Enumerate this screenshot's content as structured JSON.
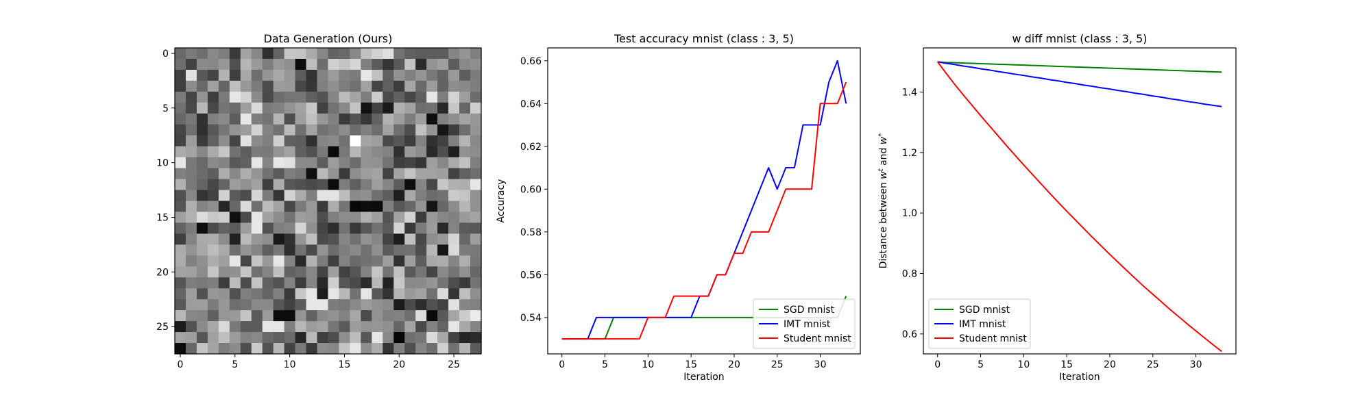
{
  "chart_data": [
    {
      "type": "heatmap",
      "title": "Data Generation (Ours)",
      "xlabel": "",
      "ylabel": "",
      "xticks": [
        0,
        5,
        10,
        15,
        20,
        25
      ],
      "yticks": [
        0,
        5,
        10,
        15,
        20,
        25
      ],
      "size": [
        28,
        28
      ],
      "value_range": [
        0,
        1
      ],
      "colormap": "gray",
      "seed": 1337,
      "highlights": [
        {
          "row": 8,
          "col": 16,
          "value": 1.0
        },
        {
          "row": 9,
          "col": 14,
          "value": 0.04
        },
        {
          "row": 11,
          "col": 12,
          "value": 0.06
        },
        {
          "row": 14,
          "col": 16,
          "value": 0.03
        },
        {
          "row": 14,
          "col": 17,
          "value": 0.05
        },
        {
          "row": 14,
          "col": 18,
          "value": 0.04
        },
        {
          "row": 24,
          "col": 9,
          "value": 0.05
        },
        {
          "row": 24,
          "col": 10,
          "value": 0.05
        },
        {
          "row": 24,
          "col": 23,
          "value": 0.04
        },
        {
          "row": 24,
          "col": 27,
          "value": 0.92
        },
        {
          "row": 26,
          "col": 20,
          "value": 0.02
        },
        {
          "row": 27,
          "col": 0,
          "value": 0.04
        }
      ]
    },
    {
      "type": "line",
      "title": "Test accuracy mnist (class : 3, 5)",
      "xlabel": "Iteration",
      "ylabel": "Accuracy",
      "xlim": [
        -1.65,
        34.65
      ],
      "ylim": [
        0.523,
        0.666
      ],
      "xticks": [
        0,
        5,
        10,
        15,
        20,
        25,
        30
      ],
      "yticks": [
        0.54,
        0.56,
        0.58,
        0.6,
        0.62,
        0.64,
        0.66
      ],
      "ytick_labels": [
        "0.54",
        "0.56",
        "0.58",
        "0.60",
        "0.62",
        "0.64",
        "0.66"
      ],
      "legend": "lower-right",
      "x": [
        0,
        1,
        2,
        3,
        4,
        5,
        6,
        7,
        8,
        9,
        10,
        11,
        12,
        13,
        14,
        15,
        16,
        17,
        18,
        19,
        20,
        21,
        22,
        23,
        24,
        25,
        26,
        27,
        28,
        29,
        30,
        31,
        32,
        33
      ],
      "series": [
        {
          "name": "SGD mnist",
          "color": "#008000",
          "values": [
            0.53,
            0.53,
            0.53,
            0.53,
            0.53,
            0.53,
            0.54,
            0.54,
            0.54,
            0.54,
            0.54,
            0.54,
            0.54,
            0.54,
            0.54,
            0.54,
            0.54,
            0.54,
            0.54,
            0.54,
            0.54,
            0.54,
            0.54,
            0.54,
            0.54,
            0.54,
            0.54,
            0.54,
            0.54,
            0.54,
            0.54,
            0.54,
            0.54,
            0.55
          ]
        },
        {
          "name": "IMT mnist",
          "color": "#0000ff",
          "values": [
            0.53,
            0.53,
            0.53,
            0.53,
            0.54,
            0.54,
            0.54,
            0.54,
            0.54,
            0.54,
            0.54,
            0.54,
            0.54,
            0.54,
            0.54,
            0.54,
            0.55,
            0.55,
            0.56,
            0.56,
            0.57,
            0.58,
            0.59,
            0.6,
            0.61,
            0.6,
            0.61,
            0.61,
            0.63,
            0.63,
            0.63,
            0.65,
            0.66,
            0.64
          ]
        },
        {
          "name": "Student mnist",
          "color": "#ff0000",
          "values": [
            0.53,
            0.53,
            0.53,
            0.53,
            0.53,
            0.53,
            0.53,
            0.53,
            0.53,
            0.53,
            0.54,
            0.54,
            0.54,
            0.55,
            0.55,
            0.55,
            0.55,
            0.55,
            0.56,
            0.56,
            0.57,
            0.57,
            0.58,
            0.58,
            0.58,
            0.59,
            0.6,
            0.6,
            0.6,
            0.6,
            0.64,
            0.64,
            0.64,
            0.65
          ]
        }
      ]
    },
    {
      "type": "line",
      "title": "w diff mnist (class : 3, 5)",
      "xlabel": "Iteration",
      "ylabel": "Distance between w^t and w^*",
      "ylabel_parts": {
        "prefix": "Distance between ",
        "var1": "w",
        "sup1": "t",
        "mid": " and ",
        "var2": "w",
        "sup2": "*"
      },
      "xlim": [
        -1.65,
        34.65
      ],
      "ylim": [
        0.534,
        1.546
      ],
      "xticks": [
        0,
        5,
        10,
        15,
        20,
        25,
        30
      ],
      "yticks": [
        0.6,
        0.8,
        1.0,
        1.2,
        1.4
      ],
      "ytick_labels": [
        "0.6",
        "0.8",
        "1.0",
        "1.2",
        "1.4"
      ],
      "legend": "lower-left",
      "x": [
        0,
        1,
        2,
        3,
        4,
        5,
        6,
        7,
        8,
        9,
        10,
        11,
        12,
        13,
        14,
        15,
        16,
        17,
        18,
        19,
        20,
        21,
        22,
        23,
        24,
        25,
        26,
        27,
        28,
        29,
        30,
        31,
        32,
        33
      ],
      "series": [
        {
          "name": "SGD mnist",
          "color": "#008000",
          "values": [
            1.5,
            1.498,
            1.497,
            1.496,
            1.495,
            1.494,
            1.493,
            1.492,
            1.491,
            1.49,
            1.489,
            1.488,
            1.487,
            1.486,
            1.485,
            1.484,
            1.483,
            1.482,
            1.481,
            1.48,
            1.479,
            1.478,
            1.477,
            1.476,
            1.475,
            1.474,
            1.473,
            1.472,
            1.471,
            1.47,
            1.469,
            1.468,
            1.467,
            1.466
          ]
        },
        {
          "name": "IMT mnist",
          "color": "#0000ff",
          "values": [
            1.5,
            1.495,
            1.491,
            1.486,
            1.482,
            1.477,
            1.473,
            1.468,
            1.464,
            1.459,
            1.455,
            1.45,
            1.446,
            1.441,
            1.437,
            1.432,
            1.428,
            1.423,
            1.419,
            1.414,
            1.41,
            1.405,
            1.401,
            1.396,
            1.392,
            1.387,
            1.383,
            1.378,
            1.374,
            1.369,
            1.365,
            1.36,
            1.356,
            1.352
          ]
        },
        {
          "name": "Student mnist",
          "color": "#ff0000",
          "values": [
            1.5,
            1.462,
            1.425,
            1.39,
            1.356,
            1.322,
            1.289,
            1.256,
            1.223,
            1.191,
            1.159,
            1.128,
            1.097,
            1.066,
            1.036,
            1.006,
            0.977,
            0.948,
            0.919,
            0.891,
            0.863,
            0.836,
            0.809,
            0.782,
            0.756,
            0.731,
            0.706,
            0.681,
            0.657,
            0.633,
            0.61,
            0.587,
            0.564,
            0.542
          ]
        }
      ]
    }
  ]
}
